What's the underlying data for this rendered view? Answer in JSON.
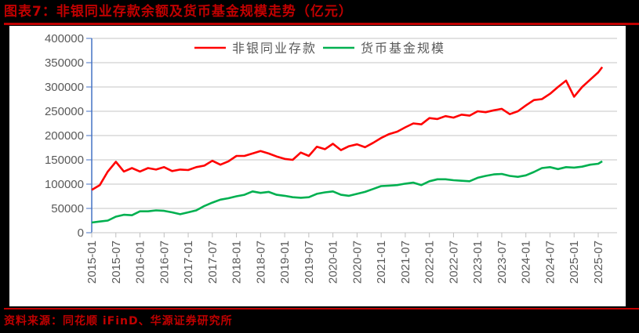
{
  "title": "图表7：非银同业存款余额及货币基金规模走势（亿元）",
  "source": "资料来源：同花顺 iFinD、华源证券研究所",
  "colors": {
    "title_red": "#c00000",
    "series_red": "#ff0000",
    "series_green": "#00b050",
    "axis_blue": "#4472c4",
    "grid": "#d9d9d9",
    "tick_text": "#595959"
  },
  "chart_data": {
    "type": "line",
    "title": "非银同业存款余额及货币基金规模走势（亿元）",
    "xlabel": "",
    "ylabel": "",
    "ylim": [
      0,
      400000
    ],
    "yticks": [
      0,
      50000,
      100000,
      150000,
      200000,
      250000,
      300000,
      350000,
      400000
    ],
    "grid": true,
    "legend_position": "top",
    "xtick_labels": [
      "2015-01",
      "2015-07",
      "2016-01",
      "2016-07",
      "2017-01",
      "2017-07",
      "2018-01",
      "2018-07",
      "2019-01",
      "2019-07",
      "2020-01",
      "2020-07",
      "2021-01",
      "2021-07",
      "2022-01",
      "2022-07",
      "2023-01",
      "2023-07",
      "2024-01",
      "2024-07",
      "2025-01",
      "2025-07"
    ],
    "x": [
      "2015-01",
      "2015-03",
      "2015-05",
      "2015-07",
      "2015-09",
      "2015-11",
      "2016-01",
      "2016-03",
      "2016-05",
      "2016-07",
      "2016-09",
      "2016-11",
      "2017-01",
      "2017-03",
      "2017-05",
      "2017-07",
      "2017-09",
      "2017-11",
      "2018-01",
      "2018-03",
      "2018-05",
      "2018-07",
      "2018-09",
      "2018-11",
      "2019-01",
      "2019-03",
      "2019-05",
      "2019-07",
      "2019-09",
      "2019-11",
      "2020-01",
      "2020-03",
      "2020-05",
      "2020-07",
      "2020-09",
      "2020-11",
      "2021-01",
      "2021-03",
      "2021-05",
      "2021-07",
      "2021-09",
      "2021-11",
      "2022-01",
      "2022-03",
      "2022-05",
      "2022-07",
      "2022-09",
      "2022-11",
      "2023-01",
      "2023-03",
      "2023-05",
      "2023-07",
      "2023-09",
      "2023-11",
      "2024-01",
      "2024-03",
      "2024-05",
      "2024-07",
      "2024-09",
      "2024-11",
      "2025-01",
      "2025-03",
      "2025-05",
      "2025-07",
      "2025-08"
    ],
    "series": [
      {
        "name": "非银同业存款",
        "color": "#ff0000",
        "values": [
          88000,
          98000,
          126000,
          146000,
          126000,
          133000,
          126000,
          133000,
          130000,
          135000,
          127000,
          130000,
          129000,
          135000,
          138000,
          148000,
          140000,
          147000,
          158000,
          158000,
          163000,
          168000,
          163000,
          157000,
          152000,
          150000,
          165000,
          158000,
          177000,
          172000,
          183000,
          170000,
          178000,
          182000,
          176000,
          185000,
          195000,
          203000,
          208000,
          217000,
          225000,
          223000,
          236000,
          234000,
          240000,
          237000,
          243000,
          241000,
          250000,
          248000,
          252000,
          255000,
          244000,
          250000,
          262000,
          273000,
          275000,
          286000,
          300000,
          313000,
          280000,
          300000,
          315000,
          330000,
          341000
        ]
      },
      {
        "name": "货币基金规模",
        "color": "#00b050",
        "values": [
          21000,
          23000,
          25000,
          33000,
          37000,
          36000,
          44000,
          44000,
          46000,
          45000,
          42000,
          38000,
          42000,
          46000,
          55000,
          62000,
          68000,
          71000,
          75000,
          78000,
          85000,
          82000,
          84000,
          78000,
          76000,
          73000,
          72000,
          73000,
          80000,
          83000,
          85000,
          78000,
          76000,
          80000,
          84000,
          90000,
          96000,
          97000,
          98000,
          101000,
          103000,
          98000,
          106000,
          110000,
          110000,
          108000,
          107000,
          106000,
          113000,
          117000,
          120000,
          121000,
          117000,
          115000,
          118000,
          125000,
          133000,
          135000,
          131000,
          135000,
          134000,
          136000,
          140000,
          142000,
          147000
        ]
      }
    ]
  },
  "legend": {
    "items": [
      {
        "label": "非银同业存款",
        "color": "#ff0000"
      },
      {
        "label": "货币基金规模",
        "color": "#00b050"
      }
    ]
  }
}
